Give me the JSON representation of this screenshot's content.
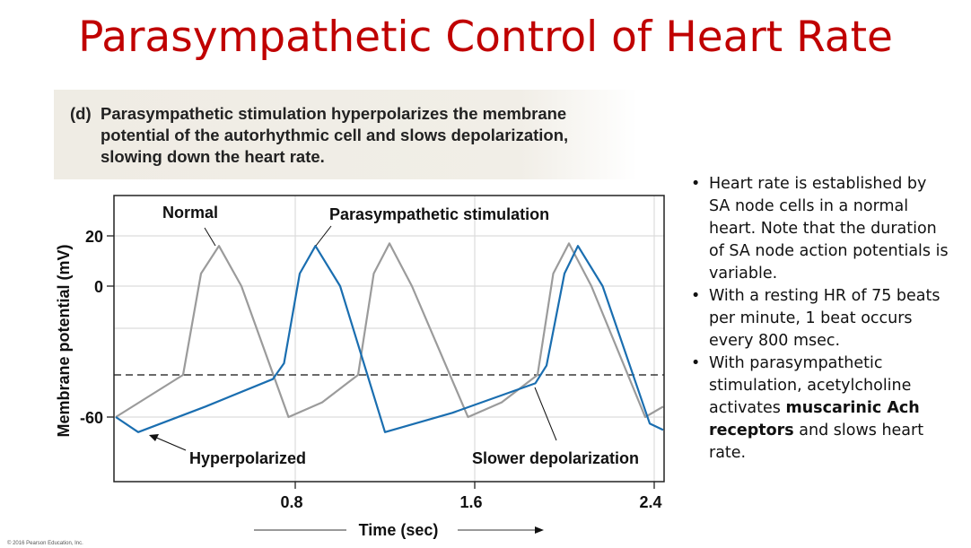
{
  "slide": {
    "title": "Parasympathetic Control of Heart Rate",
    "caption_tag": "(d)",
    "caption": "Parasympathetic stimulation hyperpolarizes the membrane potential of the autorhythmic cell and slows depolarization, slowing down the heart rate.",
    "bullets": [
      {
        "text": "Heart rate is established by SA node cells in a normal heart. Note that the duration of SA node action potentials is variable."
      },
      {
        "text": "With a resting HR of 75 beats per minute, 1 beat occurs every 800 msec."
      },
      {
        "pre": "With parasympathetic stimulation, acetylcholine activates ",
        "bold": "muscarinic Ach receptors",
        "post": " and slows heart rate."
      }
    ],
    "copyright": "© 2016 Pearson Education, Inc."
  },
  "chart_data": {
    "type": "line",
    "xlabel": "Time (sec)",
    "ylabel": "Membrane potential (mV)",
    "xlim": [
      0,
      2.44
    ],
    "ylim": [
      -80,
      30
    ],
    "x_ticks": [
      "0.8",
      "1.6",
      "2.4"
    ],
    "y_ticks": [
      "20",
      "0",
      "-60"
    ],
    "threshold_mV": -40,
    "grid": true,
    "series": [
      {
        "name": "Normal",
        "color": "#9b9b9b",
        "x": [
          0,
          0.3,
          0.38,
          0.46,
          0.56,
          0.77,
          0.92,
          1.08,
          1.15,
          1.22,
          1.32,
          1.57,
          1.72,
          1.88,
          1.95,
          2.02,
          2.12,
          2.36,
          2.44
        ],
        "y": [
          -60,
          -40,
          5,
          16,
          0,
          -60,
          -53,
          -40,
          5,
          17,
          0,
          -60,
          -53,
          -40,
          5,
          17,
          0,
          -60,
          -55
        ]
      },
      {
        "name": "Parasympathetic stimulation",
        "color": "#1a6eb0",
        "x": [
          0,
          0.1,
          0.4,
          0.7,
          0.75,
          0.82,
          0.89,
          1.0,
          1.2,
          1.5,
          1.87,
          1.92,
          2.0,
          2.06,
          2.17,
          2.38,
          2.44
        ],
        "y": [
          -60,
          -67,
          -55,
          -42,
          -35,
          5,
          16,
          0,
          -67,
          -58,
          -44,
          -36,
          5,
          16,
          0,
          -63,
          -66
        ]
      }
    ],
    "annotations": [
      "Normal",
      "Parasympathetic stimulation",
      "Hyperpolarized",
      "Slower depolarization"
    ]
  }
}
